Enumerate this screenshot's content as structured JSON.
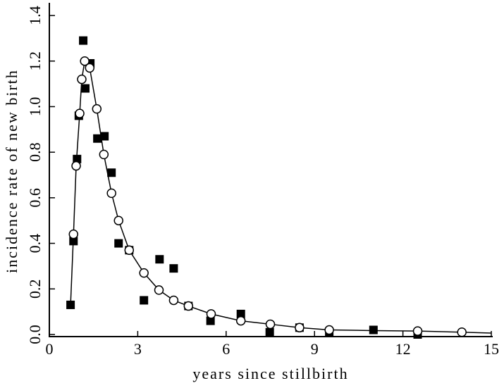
{
  "chart_data": {
    "type": "scatter",
    "xlabel": "years since stillbirth",
    "ylabel": "incidence rate of new birth",
    "xlim": [
      0,
      15
    ],
    "ylim": [
      0,
      1.4
    ],
    "xticks": [
      0,
      3,
      6,
      9,
      12,
      15
    ],
    "yticks": [
      {
        "value": 0,
        "label": "0.0"
      },
      0.2,
      0.4,
      0.6,
      0.8,
      {
        "value": 1,
        "label": "1.0"
      },
      1.2,
      1.4
    ],
    "series": [
      {
        "kind": "line",
        "color": "#000000",
        "x": [
          0.72,
          0.82,
          0.91,
          1.03,
          1.1,
          1.2,
          1.37,
          1.61,
          1.85,
          2.11,
          2.35,
          2.71,
          3.21,
          3.72,
          4.22,
          4.72,
          5.49,
          6.5,
          7.5,
          8.49,
          9.5,
          11,
          12.5,
          14,
          15
        ],
        "values": [
          0.13,
          0.44,
          0.74,
          0.97,
          1.12,
          1.2,
          1.17,
          0.99,
          0.79,
          0.62,
          0.5,
          0.37,
          0.27,
          0.195,
          0.15,
          0.125,
          0.09,
          0.06,
          0.045,
          0.03,
          0.02,
          0.017,
          0.015,
          0.01,
          0.006
        ]
      },
      {
        "kind": "scatter",
        "marker": "square",
        "color": "#000000",
        "x": [
          0.72,
          0.82,
          0.94,
          1.0,
          1.15,
          1.22,
          1.39,
          1.63,
          1.87,
          2.11,
          2.35,
          2.71,
          3.21,
          3.74,
          4.22,
          4.72,
          5.47,
          6.5,
          7.48,
          8.49,
          9.5,
          11,
          12.5
        ],
        "values": [
          0.13,
          0.41,
          0.77,
          0.96,
          1.29,
          1.08,
          1.19,
          0.86,
          0.87,
          0.71,
          0.4,
          0.37,
          0.15,
          0.33,
          0.29,
          0.125,
          0.06,
          0.09,
          0.01,
          0.03,
          0.01,
          0.02,
          0.0
        ]
      },
      {
        "kind": "scatter",
        "marker": "circle",
        "color": "#000000",
        "x": [
          0.82,
          0.91,
          1.03,
          1.1,
          1.2,
          1.37,
          1.61,
          1.85,
          2.11,
          2.35,
          2.71,
          3.21,
          3.72,
          4.22,
          4.72,
          5.49,
          6.5,
          7.5,
          8.49,
          9.5,
          12.5,
          14
        ],
        "values": [
          0.44,
          0.74,
          0.97,
          1.12,
          1.2,
          1.17,
          0.99,
          0.79,
          0.62,
          0.5,
          0.37,
          0.27,
          0.195,
          0.15,
          0.125,
          0.09,
          0.06,
          0.045,
          0.03,
          0.02,
          0.015,
          0.01
        ]
      }
    ]
  }
}
